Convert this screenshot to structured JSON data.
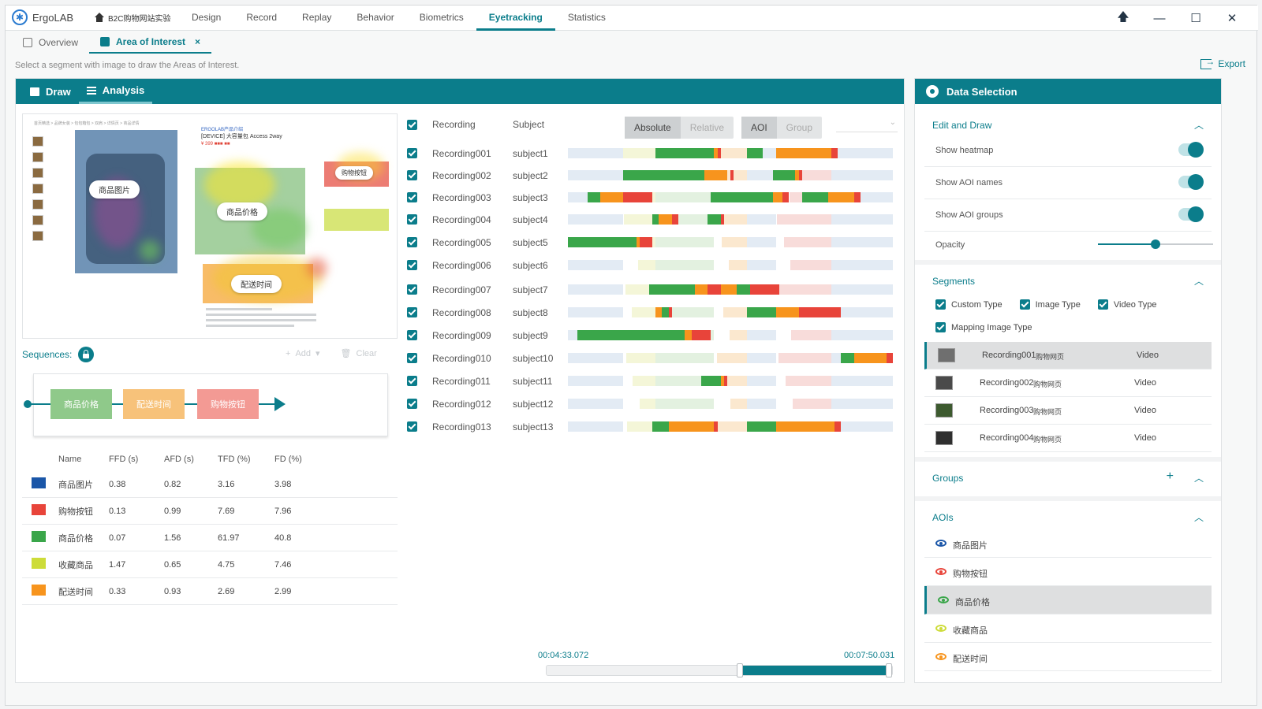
{
  "app": {
    "name": "ErgoLAB",
    "project": "B2C购物网站实验"
  },
  "nav": [
    "Design",
    "Record",
    "Replay",
    "Behavior",
    "Biometrics",
    "Eyetracking",
    "Statistics"
  ],
  "nav_active": 5,
  "window_controls": {
    "pin": "🡅",
    "minimize": "—",
    "maximize": "☐",
    "close": "✕"
  },
  "tabs": [
    {
      "label": "Overview",
      "active": false
    },
    {
      "label": "Area of Interest",
      "active": true,
      "close": "×"
    }
  ],
  "hint": "Select a segment with image to draw the Areas of Interest.",
  "export_label": "Export",
  "main_tabs": {
    "draw": "Draw",
    "analysis": "Analysis"
  },
  "preview": {
    "breadcrumb": "首页精选 > 品牌女装 > 包包箱包 > 双肩 > 详情页 > 商品详情",
    "product_title": "[DEVICE] 大容量包 Access 2way",
    "aoi_labels": [
      "商品图片",
      "商品价格",
      "配送时间",
      "购物按钮"
    ]
  },
  "sequences": {
    "title": "Sequences:",
    "add": "Add",
    "clear": "Clear",
    "nodes": [
      {
        "label": "商品价格",
        "color": "#8fc98a"
      },
      {
        "label": "配送时间",
        "color": "#f7c27a"
      },
      {
        "label": "购物按钮",
        "color": "#f39a94"
      }
    ]
  },
  "metrics": {
    "headers": [
      "Name",
      "FFD (s)",
      "AFD (s)",
      "TFD (%)",
      "FD (%)"
    ],
    "rows": [
      {
        "color": "#1a56a8",
        "name": "商品图片",
        "ffd": "0.38",
        "afd": "0.82",
        "tfd": "3.16",
        "fd": "3.98"
      },
      {
        "color": "#e8443a",
        "name": "购物按钮",
        "ffd": "0.13",
        "afd": "0.99",
        "tfd": "7.69",
        "fd": "7.96"
      },
      {
        "color": "#3aa64a",
        "name": "商品价格",
        "ffd": "0.07",
        "afd": "1.56",
        "tfd": "61.97",
        "fd": "40.8"
      },
      {
        "color": "#cddc39",
        "name": "收藏商品",
        "ffd": "1.47",
        "afd": "0.65",
        "tfd": "4.75",
        "fd": "7.46"
      },
      {
        "color": "#f7941d",
        "name": "配送时间",
        "ffd": "0.33",
        "afd": "0.93",
        "tfd": "2.69",
        "fd": "2.99"
      }
    ]
  },
  "recordings_header": {
    "recording": "Recording",
    "subject": "Subject"
  },
  "scale_toggle": {
    "absolute": "Absolute",
    "relative": "Relative"
  },
  "mode_toggle": {
    "aoi": "AOI",
    "group": "Group"
  },
  "colors": {
    "green": "#3aa64a",
    "orange": "#f7941d",
    "red": "#e8443a",
    "yellow": "#cddc39",
    "blue": "#1a56a8",
    "accent": "#0b7d8b"
  },
  "recordings": [
    {
      "name": "Recording001",
      "subject": "subject1",
      "segments": [
        [
          0.27,
          0.18,
          "green"
        ],
        [
          0.45,
          0.01,
          "orange"
        ],
        [
          0.46,
          0.01,
          "red"
        ],
        [
          0.55,
          0.05,
          "green"
        ],
        [
          0.64,
          0.17,
          "orange"
        ],
        [
          0.81,
          0.02,
          "red"
        ]
      ]
    },
    {
      "name": "Recording002",
      "subject": "subject2",
      "segments": [
        [
          0.17,
          0.25,
          "green"
        ],
        [
          0.42,
          0.07,
          "orange"
        ],
        [
          0.5,
          0.01,
          "red"
        ],
        [
          0.63,
          0.07,
          "green"
        ],
        [
          0.7,
          0.01,
          "orange"
        ],
        [
          0.71,
          0.01,
          "red"
        ]
      ]
    },
    {
      "name": "Recording003",
      "subject": "subject3",
      "segments": [
        [
          0.06,
          0.04,
          "green"
        ],
        [
          0.1,
          0.07,
          "orange"
        ],
        [
          0.17,
          0.09,
          "red"
        ],
        [
          0.44,
          0.19,
          "green"
        ],
        [
          0.63,
          0.03,
          "orange"
        ],
        [
          0.66,
          0.02,
          "red"
        ],
        [
          0.72,
          0.08,
          "green"
        ],
        [
          0.8,
          0.08,
          "orange"
        ],
        [
          0.88,
          0.02,
          "red"
        ]
      ]
    },
    {
      "name": "Recording004",
      "subject": "subject4",
      "segments": [
        [
          0.26,
          0.02,
          "green"
        ],
        [
          0.28,
          0.04,
          "orange"
        ],
        [
          0.32,
          0.02,
          "red"
        ],
        [
          0.43,
          0.04,
          "green"
        ],
        [
          0.47,
          0.01,
          "red"
        ]
      ]
    },
    {
      "name": "Recording005",
      "subject": "subject5",
      "segments": [
        [
          0.0,
          0.21,
          "green"
        ],
        [
          0.21,
          0.01,
          "orange"
        ],
        [
          0.22,
          0.04,
          "red"
        ]
      ]
    },
    {
      "name": "Recording006",
      "subject": "subject6",
      "segments": []
    },
    {
      "name": "Recording007",
      "subject": "subject7",
      "segments": [
        [
          0.25,
          0.14,
          "green"
        ],
        [
          0.39,
          0.04,
          "orange"
        ],
        [
          0.43,
          0.04,
          "red"
        ],
        [
          0.47,
          0.05,
          "orange"
        ],
        [
          0.52,
          0.04,
          "green"
        ],
        [
          0.56,
          0.09,
          "red"
        ]
      ]
    },
    {
      "name": "Recording008",
      "subject": "subject8",
      "segments": [
        [
          0.27,
          0.02,
          "orange"
        ],
        [
          0.29,
          0.02,
          "green"
        ],
        [
          0.31,
          0.01,
          "red"
        ],
        [
          0.55,
          0.09,
          "green"
        ],
        [
          0.64,
          0.07,
          "orange"
        ],
        [
          0.71,
          0.13,
          "red"
        ]
      ]
    },
    {
      "name": "Recording009",
      "subject": "subject9",
      "segments": [
        [
          0.03,
          0.33,
          "green"
        ],
        [
          0.36,
          0.02,
          "orange"
        ],
        [
          0.38,
          0.06,
          "red"
        ]
      ]
    },
    {
      "name": "Recording010",
      "subject": "subject10",
      "segments": [
        [
          0.84,
          0.04,
          "green"
        ],
        [
          0.88,
          0.1,
          "orange"
        ],
        [
          0.98,
          0.02,
          "red"
        ]
      ]
    },
    {
      "name": "Recording011",
      "subject": "subject11",
      "segments": [
        [
          0.41,
          0.06,
          "green"
        ],
        [
          0.47,
          0.01,
          "orange"
        ],
        [
          0.48,
          0.01,
          "red"
        ]
      ]
    },
    {
      "name": "Recording012",
      "subject": "subject12",
      "segments": []
    },
    {
      "name": "Recording013",
      "subject": "subject13",
      "segments": [
        [
          0.26,
          0.05,
          "green"
        ],
        [
          0.31,
          0.14,
          "orange"
        ],
        [
          0.45,
          0.01,
          "red"
        ],
        [
          0.55,
          0.09,
          "green"
        ],
        [
          0.64,
          0.18,
          "orange"
        ],
        [
          0.82,
          0.02,
          "red"
        ]
      ]
    }
  ],
  "time_range": {
    "start": "00:04:33.072",
    "end": "00:07:50.031",
    "start_frac": 0.56,
    "end_frac": 1.0
  },
  "side": {
    "title": "Data Selection",
    "edit_draw": {
      "title": "Edit and Draw",
      "show_heatmap": "Show heatmap",
      "show_aoi_names": "Show AOI names",
      "show_aoi_groups": "Show AOI groups",
      "opacity": "Opacity",
      "opacity_value": 0.5
    },
    "segments": {
      "title": "Segments",
      "types": [
        "Custom Type",
        "Image Type",
        "Video Type",
        "Mapping Image Type"
      ],
      "items": [
        {
          "name": "Recording001",
          "tag": "购物网页",
          "type": "Video",
          "selected": true
        },
        {
          "name": "Recording002",
          "tag": "购物网页",
          "type": "Video",
          "selected": false
        },
        {
          "name": "Recording003",
          "tag": "购物网页",
          "type": "Video",
          "selected": false
        },
        {
          "name": "Recording004",
          "tag": "购物网页",
          "type": "Video",
          "selected": false
        }
      ]
    },
    "groups": {
      "title": "Groups",
      "add": "+"
    },
    "aois": {
      "title": "AOIs",
      "items": [
        {
          "name": "商品图片",
          "color": "#1a56a8",
          "selected": false
        },
        {
          "name": "购物按钮",
          "color": "#e8443a",
          "selected": false
        },
        {
          "name": "商品价格",
          "color": "#3aa64a",
          "selected": true
        },
        {
          "name": "收藏商品",
          "color": "#cddc39",
          "selected": false
        },
        {
          "name": "配送时间",
          "color": "#f7941d",
          "selected": false
        }
      ]
    },
    "collapse_icon": "︿"
  }
}
